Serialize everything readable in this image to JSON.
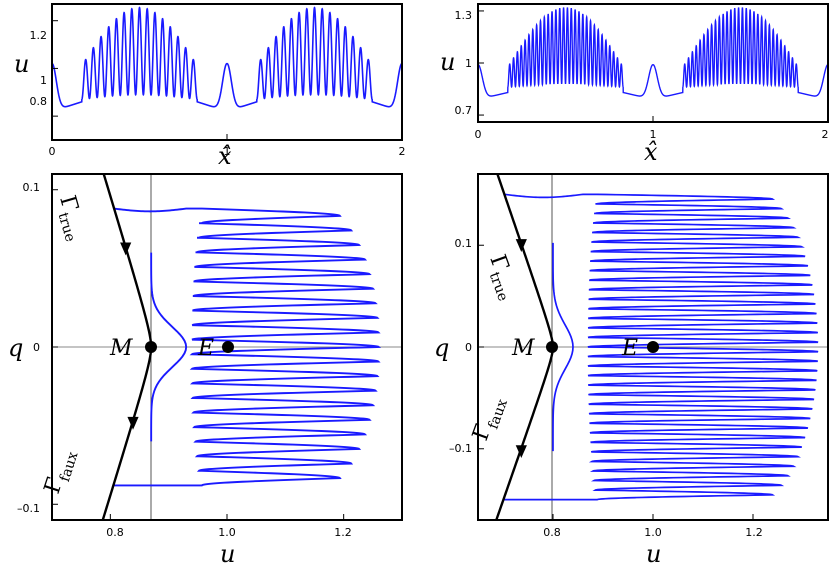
{
  "chart_data": [
    {
      "id": "top-left",
      "type": "line",
      "xlabel": "x̂",
      "ylabel": "u",
      "xlim": [
        0,
        2
      ],
      "ylim": [
        0.7,
        1.27
      ],
      "xticks": [
        0,
        1,
        2
      ],
      "xticklabels": [
        "0",
        "1",
        "2"
      ],
      "yticks": [
        0.8,
        1.0,
        1.2
      ],
      "yticklabels": [
        "0.8",
        "1",
        "1.2"
      ],
      "color": "#1a1aff",
      "oscillations_per_half": 15,
      "envelope_max": 1.255,
      "envelope_min": 0.88
    },
    {
      "id": "top-right",
      "type": "line",
      "xlabel": "x̂",
      "ylabel": "u",
      "xlim": [
        0,
        2
      ],
      "ylim": [
        0.66,
        1.34
      ],
      "xticks": [
        0,
        1,
        2
      ],
      "xticklabels": [
        "0",
        "1",
        "2"
      ],
      "yticks": [
        0.7,
        1.0,
        1.3
      ],
      "yticklabels": [
        "0.7",
        "1",
        "1.3"
      ],
      "color": "#1a1aff",
      "oscillations_per_half": 30,
      "envelope_max": 1.32,
      "envelope_min": 0.79
    },
    {
      "id": "bottom-left",
      "type": "line",
      "xlabel": "u",
      "ylabel": "q",
      "xlim": [
        0.7,
        1.3
      ],
      "ylim": [
        -0.11,
        0.11
      ],
      "xticks": [
        0.8,
        1.0,
        1.2
      ],
      "xticklabels": [
        "0.8",
        "1.0",
        "1.2"
      ],
      "yticks": [
        -0.1,
        0,
        0.1
      ],
      "yticklabels": [
        "–0.1",
        "0",
        "0.1"
      ],
      "vline": 0.87,
      "points": [
        {
          "label": "M",
          "u": 0.87,
          "q": 0
        },
        {
          "label": "E",
          "u": 1.0,
          "q": 0
        }
      ],
      "gamma_true_label": "Γ",
      "gamma_true_sub": "true",
      "gamma_faux_label": "Γ",
      "gamma_faux_sub": "faux",
      "loops": 19,
      "q_extent": 0.088,
      "u_max": 1.26,
      "color": "#1a1aff"
    },
    {
      "id": "bottom-right",
      "type": "line",
      "xlabel": "u",
      "ylabel": "q",
      "xlim": [
        0.65,
        1.35
      ],
      "ylim": [
        -0.17,
        0.17
      ],
      "xticks": [
        0.8,
        1.0,
        1.2
      ],
      "xticklabels": [
        "0.8",
        "1.0",
        "1.2"
      ],
      "yticks": [
        -0.1,
        0,
        0.1
      ],
      "yticklabels": [
        "–0.1",
        "0",
        "0.1"
      ],
      "vline": 0.8,
      "points": [
        {
          "label": "M",
          "u": 0.8,
          "q": 0
        },
        {
          "label": "E",
          "u": 1.0,
          "q": 0
        }
      ],
      "gamma_true_label": "Γ",
      "gamma_true_sub": "true",
      "gamma_faux_label": "Γ",
      "gamma_faux_sub": "faux",
      "loops": 32,
      "q_extent": 0.15,
      "u_max": 1.33,
      "color": "#1a1aff"
    }
  ]
}
